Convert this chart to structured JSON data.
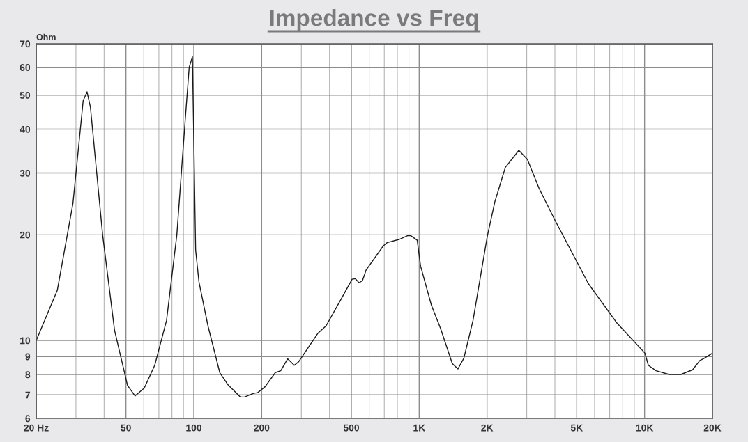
{
  "chart_data": {
    "type": "line",
    "title": "Impedance vs Freq",
    "ylabel": "Ohm",
    "log": "xy",
    "grid": true,
    "marker": "none",
    "line_style": "solid",
    "xlim": [
      20,
      20000
    ],
    "ylim": [
      6,
      70
    ],
    "xticks": [
      {
        "value": 20,
        "label": "20 Hz"
      },
      50,
      100,
      200,
      500,
      {
        "value": 1000,
        "label": "1K"
      },
      {
        "value": 2000,
        "label": "2K"
      },
      {
        "value": 5000,
        "label": "5K"
      },
      {
        "value": 10000,
        "label": "10K"
      },
      {
        "value": 20000,
        "label": "20K"
      }
    ],
    "yticks": [
      6,
      7,
      8,
      9,
      10,
      20,
      30,
      40,
      50,
      60,
      70
    ],
    "series": [
      {
        "color": "#1a1a1a",
        "x": [
          20,
          24.8,
          29.1,
          32.3,
          33.6,
          34.8,
          39.4,
          44.5,
          50.8,
          54.9,
          60.3,
          67.1,
          75.7,
          84.1,
          91.2,
          95.4,
          98.6,
          101.9,
          105.4,
          115.6,
          130.4,
          141.3,
          161,
          168,
          184,
          192,
          207,
          230,
          243,
          261,
          279,
          292,
          356,
          386,
          447,
          504,
          521,
          541,
          560,
          582,
          693,
          721,
          813,
          891,
          916,
          980,
          1014,
          1133,
          1245,
          1402,
          1486,
          1578,
          1733,
          2005,
          2168,
          2410,
          2767,
          3021,
          3404,
          3990,
          5638,
          7549,
          10040,
          10390,
          11250,
          12850,
          14490,
          16330,
          17590,
          18240,
          20000
        ],
        "values": [
          10,
          13.9,
          24.6,
          48.2,
          51.1,
          46.1,
          20.0,
          10.7,
          7.45,
          6.95,
          7.32,
          8.5,
          11.4,
          20.0,
          40.9,
          60,
          64.3,
          18.1,
          14.7,
          11.0,
          8.1,
          7.5,
          6.9,
          6.9,
          7.07,
          7.1,
          7.38,
          8.1,
          8.2,
          8.87,
          8.5,
          8.7,
          10.5,
          11.0,
          13.0,
          14.95,
          15.0,
          14.6,
          14.8,
          15.9,
          18.6,
          19.0,
          19.4,
          19.9,
          19.9,
          19.3,
          16.3,
          12.6,
          10.8,
          8.6,
          8.3,
          8.9,
          11.4,
          19.8,
          24.9,
          31.1,
          34.8,
          32.8,
          27.1,
          22.1,
          14.5,
          11.2,
          9.2,
          8.5,
          8.2,
          8.0,
          8.0,
          8.25,
          8.77,
          8.87,
          9.2
        ]
      }
    ]
  }
}
